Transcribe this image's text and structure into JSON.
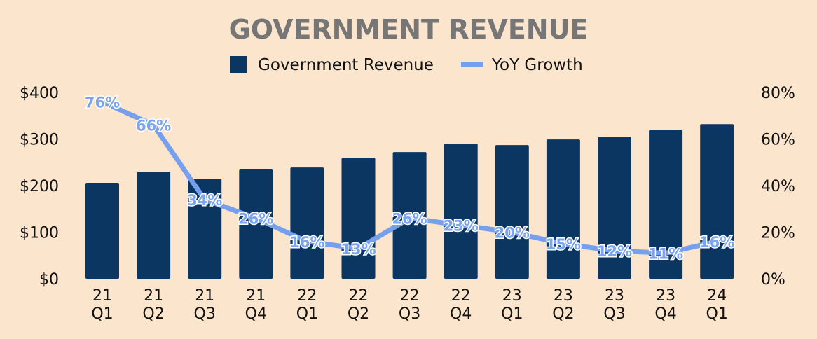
{
  "chart_data": {
    "type": "bar",
    "title": "GOVERNMENT REVENUE",
    "categories": [
      [
        "21",
        "Q1"
      ],
      [
        "21",
        "Q2"
      ],
      [
        "21",
        "Q3"
      ],
      [
        "21",
        "Q4"
      ],
      [
        "22",
        "Q1"
      ],
      [
        "22",
        "Q2"
      ],
      [
        "22",
        "Q3"
      ],
      [
        "22",
        "Q4"
      ],
      [
        "23",
        "Q1"
      ],
      [
        "23",
        "Q2"
      ],
      [
        "23",
        "Q3"
      ],
      [
        "23",
        "Q4"
      ],
      [
        "24",
        "Q1"
      ]
    ],
    "series": [
      {
        "name": "Government Revenue",
        "type": "bar",
        "axis": "left",
        "color": "#0a3661",
        "values": [
          206,
          230,
          215,
          236,
          239,
          260,
          272,
          290,
          287,
          299,
          305,
          320,
          332
        ]
      },
      {
        "name": "YoY Growth",
        "type": "line",
        "axis": "right",
        "color": "#76a0ee",
        "values": [
          76,
          66,
          34,
          26,
          16,
          13,
          26,
          23,
          20,
          15,
          12,
          11,
          16
        ],
        "labels": [
          "76%",
          "66%",
          "34%",
          "26%",
          "16%",
          "13%",
          "26%",
          "23%",
          "20%",
          "15%",
          "12%",
          "11%",
          "16%"
        ]
      }
    ],
    "y_left": {
      "ylim": [
        0,
        400
      ],
      "ticks": [
        0,
        100,
        200,
        300,
        400
      ],
      "tick_labels": [
        "$0",
        "$100",
        "$200",
        "$300",
        "$400"
      ]
    },
    "y_right": {
      "ylim": [
        0,
        80
      ],
      "ticks": [
        0,
        20,
        40,
        60,
        80
      ],
      "tick_labels": [
        "0%",
        "20%",
        "40%",
        "60%",
        "80%"
      ]
    },
    "legend": {
      "position": "top-center",
      "items": [
        "Government Revenue",
        "YoY Growth"
      ]
    },
    "grid": false
  }
}
